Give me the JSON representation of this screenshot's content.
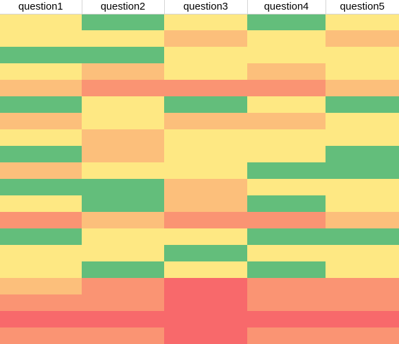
{
  "headers": [
    "question1",
    "question2",
    "question3",
    "question4",
    "question5"
  ],
  "palette": {
    "yellow": "#FEE883",
    "green": "#63BE7B",
    "light_orange": "#FCBF7B",
    "orange": "#FA9473",
    "red": "#F8696B"
  },
  "rows": [
    [
      "yellow",
      "green",
      "yellow",
      "green",
      "yellow"
    ],
    [
      "yellow",
      "yellow",
      "light_orange",
      "yellow",
      "light_orange"
    ],
    [
      "green",
      "green",
      "yellow",
      "yellow",
      "yellow"
    ],
    [
      "yellow",
      "light_orange",
      "yellow",
      "light_orange",
      "yellow"
    ],
    [
      "light_orange",
      "orange",
      "orange",
      "orange",
      "light_orange"
    ],
    [
      "green",
      "yellow",
      "green",
      "yellow",
      "green"
    ],
    [
      "light_orange",
      "yellow",
      "light_orange",
      "light_orange",
      "yellow"
    ],
    [
      "yellow",
      "light_orange",
      "yellow",
      "yellow",
      "yellow"
    ],
    [
      "green",
      "light_orange",
      "yellow",
      "yellow",
      "green"
    ],
    [
      "light_orange",
      "yellow",
      "yellow",
      "green",
      "green"
    ],
    [
      "green",
      "green",
      "light_orange",
      "yellow",
      "yellow"
    ],
    [
      "yellow",
      "green",
      "light_orange",
      "green",
      "yellow"
    ],
    [
      "orange",
      "light_orange",
      "orange",
      "orange",
      "light_orange"
    ],
    [
      "green",
      "yellow",
      "yellow",
      "green",
      "green"
    ],
    [
      "yellow",
      "yellow",
      "green",
      "yellow",
      "yellow"
    ],
    [
      "yellow",
      "green",
      "yellow",
      "green",
      "yellow"
    ],
    [
      "light_orange",
      "orange",
      "red",
      "orange",
      "orange"
    ],
    [
      "orange",
      "orange",
      "red",
      "orange",
      "orange"
    ],
    [
      "red",
      "red",
      "red",
      "red",
      "red"
    ],
    [
      "orange",
      "orange",
      "red",
      "orange",
      "orange"
    ]
  ]
}
